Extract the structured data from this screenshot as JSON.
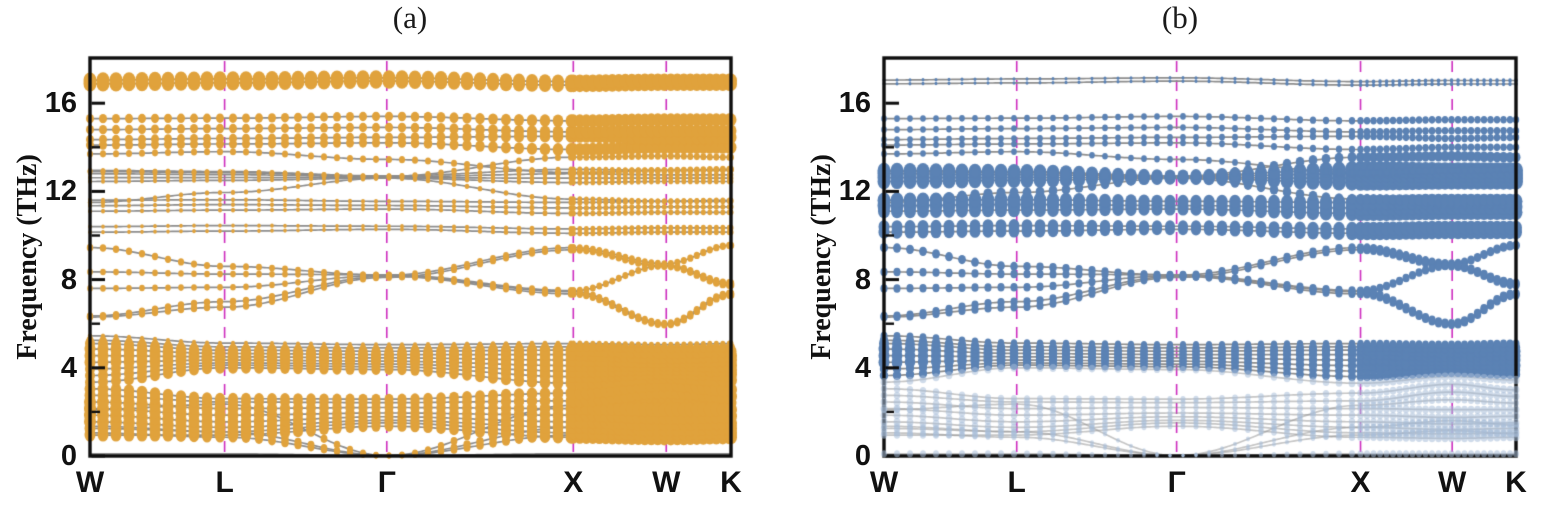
{
  "figure": {
    "panels": [
      {
        "title": "(a)"
      },
      {
        "title": "(b)"
      }
    ]
  },
  "chart_data": {
    "type": "scatter",
    "subtype": "phonon-dispersion-two-panel",
    "description": "Phonon band structure along W-L-Gamma-X-W-K; panel (a) orange atomic projection, panel (b) blue atomic projection; gray dispersion lines with projection-weighted markers",
    "k_path": {
      "labels": [
        "W",
        "L",
        "Γ",
        "X",
        "W",
        "K"
      ],
      "positions": [
        0,
        0.21,
        0.463,
        0.754,
        0.899,
        1.0
      ]
    },
    "y_axis": {
      "label": "Frequency (THz)",
      "unit": "THz",
      "min": 0,
      "max": 18.05,
      "major_ticks": [
        0,
        4,
        8,
        12,
        16
      ],
      "minor_ticks": [
        2,
        6,
        10,
        14
      ]
    },
    "guide_line_color": "#CD2CBE",
    "band_line_color": "#8C8C8C",
    "frame_color": "#0d0d0d",
    "panels": [
      {
        "name": "(a)",
        "marker_color": "#E0A23C"
      },
      {
        "name": "(b)",
        "marker_color": "#5B82B4",
        "faded_marker_color": "rgba(168,189,216,0.55)"
      }
    ],
    "bands": [
      {
        "f": [
          0.1,
          0.1,
          0.02,
          0.1,
          0.1,
          0.1
        ],
        "a": [
          0.3,
          0.3,
          0.3,
          0.3,
          0.3,
          0.3
        ],
        "b": [
          3,
          3,
          1.5,
          3,
          3,
          3
        ],
        "fade": true
      },
      {
        "f": [
          1.05,
          0.85,
          0.02,
          0.95,
          1.15,
          1.0
        ],
        "a": [
          5,
          4.5,
          2.5,
          5,
          5.5,
          5.5
        ],
        "b": [
          3,
          2.5,
          1.5,
          2.5,
          3,
          3
        ],
        "fade": true
      },
      {
        "f": [
          1.35,
          1.1,
          0.02,
          1.3,
          1.6,
          1.4
        ],
        "a": [
          5,
          4.5,
          2.5,
          5,
          5.5,
          5.5
        ],
        "b": [
          3,
          2.5,
          1.5,
          2.5,
          3,
          3
        ],
        "fade": true
      },
      {
        "f": [
          2.1,
          2.35,
          0.02,
          2.3,
          2.55,
          2.4
        ],
        "a": [
          5.5,
          5,
          2.5,
          5,
          5.5,
          5.5
        ],
        "b": [
          3,
          3,
          1.5,
          3,
          3,
          3
        ],
        "fade": true
      },
      {
        "f": [
          0.95,
          0.95,
          1.35,
          0.85,
          0.8,
          0.85
        ],
        "a": [
          5.5,
          5.5,
          4.5,
          5.5,
          6,
          6
        ],
        "b": [
          3.2,
          3,
          2.5,
          3.2,
          3.4,
          3.4
        ],
        "fade": true
      },
      {
        "f": [
          1.25,
          1.1,
          1.5,
          1.05,
          1.0,
          1.05
        ],
        "a": [
          5.5,
          5.5,
          4.5,
          5.5,
          6,
          6
        ],
        "b": [
          3.2,
          3,
          2.5,
          3.2,
          3.4,
          3.4
        ],
        "fade": true
      },
      {
        "f": [
          1.55,
          1.3,
          1.62,
          1.3,
          1.2,
          1.25
        ],
        "a": [
          6,
          5.5,
          4.5,
          5.5,
          6,
          6
        ],
        "b": [
          3.4,
          3.2,
          2.5,
          3.2,
          3.4,
          3.4
        ],
        "fade": true
      },
      {
        "f": [
          1.85,
          1.55,
          1.78,
          1.55,
          1.45,
          1.5
        ],
        "a": [
          6,
          5.5,
          4.5,
          5.5,
          6,
          6
        ],
        "b": [
          3.4,
          3.2,
          2.5,
          3.2,
          3.4,
          3.4
        ],
        "fade": true
      },
      {
        "f": [
          2.15,
          1.85,
          1.95,
          1.85,
          1.75,
          1.8
        ],
        "a": [
          6,
          5.5,
          4.5,
          5.5,
          6,
          6
        ],
        "b": [
          3.4,
          3.2,
          2.6,
          3.2,
          3.4,
          3.4
        ],
        "fade": true
      },
      {
        "f": [
          2.45,
          2.15,
          2.2,
          2.15,
          2.1,
          2.1
        ],
        "a": [
          6,
          5.5,
          4.5,
          5.5,
          6,
          6
        ],
        "b": [
          3.4,
          3.2,
          2.6,
          3.2,
          3.4,
          3.4
        ],
        "fade": true
      },
      {
        "f": [
          2.75,
          2.45,
          2.42,
          2.5,
          2.9,
          2.7
        ],
        "a": [
          5.5,
          5,
          4.5,
          5.5,
          6,
          6
        ],
        "b": [
          3.2,
          3,
          2.6,
          3.2,
          3.4,
          3.4
        ],
        "fade": true
      },
      {
        "f": [
          3.05,
          2.6,
          2.58,
          2.85,
          3.25,
          3.0
        ],
        "a": [
          5.5,
          5,
          4.5,
          5.5,
          6,
          6
        ],
        "b": [
          3.2,
          3,
          2.6,
          3.2,
          3.4,
          3.4
        ],
        "fade": true
      },
      {
        "f": [
          3.35,
          4.0,
          3.92,
          3.3,
          3.6,
          3.45
        ],
        "a": [
          5,
          5,
          4.5,
          5.5,
          6,
          6
        ],
        "b": [
          3.4,
          3.4,
          3,
          3.4,
          3.6,
          3.6
        ],
        "fade": true
      },
      {
        "f": [
          3.65,
          4.12,
          4.05,
          3.6,
          3.8,
          3.7
        ],
        "a": [
          5,
          5,
          4.5,
          5.5,
          6,
          6
        ],
        "b": [
          4.2,
          4,
          3.6,
          4,
          4.2,
          4.2
        ]
      },
      {
        "f": [
          3.95,
          4.22,
          4.17,
          3.85,
          3.97,
          3.9
        ],
        "a": [
          5,
          5,
          4.5,
          5.5,
          6,
          6
        ],
        "b": [
          4.2,
          4,
          3.6,
          4,
          4.2,
          4.2
        ]
      },
      {
        "f": [
          4.25,
          4.35,
          4.3,
          4.1,
          4.15,
          4.1
        ],
        "a": [
          5.5,
          5.5,
          5,
          5.5,
          6,
          6
        ],
        "b": [
          5.5,
          4.3,
          3.8,
          4.3,
          4.5,
          4.5
        ]
      },
      {
        "f": [
          4.55,
          4.5,
          4.45,
          4.35,
          4.32,
          4.35
        ],
        "a": [
          5.5,
          5.5,
          5,
          5.5,
          6,
          6
        ],
        "b": [
          5.5,
          4.3,
          3.8,
          4.3,
          4.5,
          4.5
        ]
      },
      {
        "f": [
          4.85,
          4.65,
          4.6,
          4.6,
          4.5,
          4.55
        ],
        "a": [
          5.5,
          5.5,
          5,
          5.5,
          6,
          6
        ],
        "b": [
          5.5,
          4.3,
          3.8,
          4.3,
          4.5,
          4.5
        ]
      },
      {
        "f": [
          5.1,
          4.8,
          4.75,
          4.8,
          4.7,
          4.75
        ],
        "a": [
          5,
          5,
          4.5,
          5.5,
          5.5,
          5.5
        ],
        "b": [
          5,
          4.3,
          3.8,
          4.3,
          4.5,
          4.5
        ]
      },
      {
        "f": [
          5.25,
          4.95,
          4.9,
          4.95,
          4.88,
          4.92
        ],
        "a": [
          3.5,
          3,
          3,
          4,
          4,
          4
        ],
        "b": [
          4.2,
          4,
          3.6,
          4,
          4.2,
          4.2
        ]
      },
      {
        "f": [
          5.45,
          5.12,
          5.05,
          5.1,
          5.05,
          5.1
        ],
        "a": [
          2.2,
          2,
          2,
          2.5,
          2.5,
          2.5
        ],
        "b": [
          3.5,
          3.2,
          3,
          3.2,
          3.5,
          3.5
        ]
      },
      {
        "f": [
          6.35,
          7.0,
          8.15,
          7.35,
          5.95,
          7.3
        ],
        "a": [
          3.2,
          3.2,
          3,
          3.2,
          3.2,
          3.4
        ],
        "b": [
          3.6,
          3.6,
          3.4,
          3.6,
          3.6,
          3.8
        ]
      },
      {
        "f": [
          6.3,
          6.75,
          8.1,
          9.35,
          8.6,
          7.75
        ],
        "a": [
          3.2,
          3.2,
          3,
          3.2,
          3.2,
          3.4
        ],
        "b": [
          3.6,
          3.6,
          3.4,
          3.6,
          3.6,
          3.8
        ]
      },
      {
        "f": [
          9.45,
          8.6,
          8.2,
          9.45,
          8.72,
          9.55
        ],
        "a": [
          3.2,
          3,
          2.8,
          3,
          3,
          3.2
        ],
        "b": [
          4,
          3.8,
          3.4,
          3.8,
          3.8,
          4
        ]
      },
      {
        "f": [
          8.35,
          8.25,
          8.22,
          7.5,
          8.65,
          7.85
        ],
        "a": [
          2.8,
          2.8,
          2.8,
          3,
          3,
          3.2
        ],
        "b": [
          3.6,
          3.6,
          3.4,
          3.6,
          3.6,
          3.8
        ]
      },
      {
        "f": [
          7.6,
          7.65,
          8.18,
          7.45,
          6.02,
          7.38
        ],
        "a": [
          2.8,
          2.8,
          2.8,
          3,
          3,
          3.2
        ],
        "b": [
          3.6,
          3.6,
          3.4,
          3.6,
          3.6,
          3.8
        ]
      },
      {
        "f": [
          10.15,
          10.2,
          10.28,
          10.1,
          10.15,
          10.15
        ],
        "a": [
          1.8,
          1.8,
          1.8,
          2.5,
          2.5,
          2.5
        ],
        "b": [
          5.5,
          5.5,
          5,
          6,
          6,
          6
        ]
      },
      {
        "f": [
          10.4,
          10.45,
          10.42,
          10.3,
          10.35,
          10.35
        ],
        "a": [
          1.8,
          1.8,
          1.8,
          2.5,
          2.5,
          2.5
        ],
        "b": [
          5.5,
          5.5,
          5,
          6,
          6,
          6
        ]
      },
      {
        "f": [
          11.1,
          11.15,
          11.2,
          11.0,
          11.05,
          11.05
        ],
        "a": [
          2,
          2,
          2,
          2.5,
          2.5,
          2.5
        ],
        "b": [
          6,
          6,
          5.5,
          6.5,
          6.5,
          6.5
        ]
      },
      {
        "f": [
          11.35,
          11.4,
          11.36,
          11.25,
          11.3,
          11.3
        ],
        "a": [
          2,
          2,
          2,
          2.5,
          2.5,
          2.5
        ],
        "b": [
          6.5,
          6.5,
          5.5,
          6.5,
          6.5,
          6.5
        ]
      },
      {
        "f": [
          11.6,
          11.62,
          11.55,
          11.5,
          11.55,
          11.55
        ],
        "a": [
          2,
          2,
          2,
          2.5,
          2.5,
          2.5
        ],
        "b": [
          6.5,
          6.5,
          5.5,
          6.5,
          6.5,
          6.5
        ]
      },
      {
        "f": [
          11.5,
          11.95,
          12.6,
          11.65,
          11.55,
          11.6
        ],
        "a": [
          2.2,
          2.2,
          2.2,
          2.4,
          2.4,
          2.4
        ],
        "b": [
          5,
          4.5,
          4,
          4.5,
          4.5,
          4.5
        ]
      },
      {
        "f": [
          12.45,
          12.5,
          12.6,
          12.4,
          12.45,
          12.45
        ],
        "a": [
          2,
          2,
          2,
          2.4,
          2.4,
          2.4
        ],
        "b": [
          6.5,
          6.5,
          5.5,
          7,
          7,
          7
        ]
      },
      {
        "f": [
          12.62,
          12.63,
          12.62,
          12.6,
          12.6,
          12.6
        ],
        "a": [
          2,
          2,
          2,
          2.4,
          2.4,
          2.4
        ],
        "b": [
          6.5,
          6.5,
          5.5,
          7,
          7,
          7
        ]
      },
      {
        "f": [
          12.8,
          12.76,
          12.66,
          12.8,
          12.75,
          12.75
        ],
        "a": [
          2,
          2,
          2,
          2.4,
          2.4,
          2.4
        ],
        "b": [
          6.5,
          6.5,
          5.5,
          7,
          7,
          7
        ]
      },
      {
        "f": [
          12.95,
          12.9,
          12.7,
          13.0,
          12.95,
          12.95
        ],
        "a": [
          2.2,
          2.2,
          2.2,
          2.4,
          2.4,
          2.4
        ],
        "b": [
          6.5,
          6.5,
          5.5,
          7,
          7,
          7
        ]
      },
      {
        "f": [
          12.9,
          12.85,
          12.68,
          13.55,
          13.6,
          13.55
        ],
        "a": [
          2.6,
          2.6,
          2.6,
          3,
          3,
          3
        ],
        "b": [
          4.5,
          4.5,
          4,
          4.5,
          4.5,
          4.5
        ]
      },
      {
        "f": [
          13.7,
          13.8,
          13.45,
          12.85,
          12.95,
          13.0
        ],
        "a": [
          3,
          3,
          3,
          3,
          3,
          3
        ],
        "b": [
          2.8,
          2.8,
          2.8,
          3,
          3,
          3
        ]
      },
      {
        "f": [
          14.1,
          14.15,
          14.2,
          13.9,
          14.0,
          14.0
        ],
        "a": [
          4,
          4,
          4,
          5.5,
          5.5,
          5.5
        ],
        "b": [
          2.8,
          2.8,
          2.8,
          3.2,
          3.2,
          3.2
        ]
      },
      {
        "f": [
          14.35,
          14.4,
          14.45,
          14.5,
          14.4,
          14.45
        ],
        "a": [
          4,
          4,
          4,
          5.5,
          5.5,
          5.5
        ],
        "b": [
          2.8,
          2.8,
          2.8,
          3.2,
          3.2,
          3.2
        ]
      },
      {
        "f": [
          14.8,
          14.85,
          14.9,
          14.7,
          14.75,
          14.75
        ],
        "a": [
          4,
          4,
          4,
          5.5,
          5.5,
          5.5
        ],
        "b": [
          2.8,
          2.8,
          2.8,
          3.2,
          3.2,
          3.2
        ]
      },
      {
        "f": [
          15.3,
          15.32,
          15.4,
          15.2,
          15.25,
          15.25
        ],
        "a": [
          4,
          4,
          4,
          5.5,
          5.5,
          5.5
        ],
        "b": [
          2.8,
          2.8,
          2.8,
          3.2,
          3.2,
          3.2
        ]
      },
      {
        "f": [
          16.88,
          16.92,
          17.0,
          16.82,
          16.87,
          16.87
        ],
        "a": [
          6.5,
          6.5,
          6.5,
          6,
          6,
          6
        ],
        "b": [
          1.5,
          1.5,
          1.5,
          1.8,
          1.8,
          1.8
        ]
      },
      {
        "f": [
          17.05,
          17.1,
          17.15,
          16.98,
          17.03,
          17.03
        ],
        "a": [
          6.5,
          6.5,
          6.5,
          6,
          6,
          6
        ],
        "b": [
          1.5,
          1.5,
          1.5,
          1.8,
          1.8,
          1.8
        ]
      }
    ]
  }
}
